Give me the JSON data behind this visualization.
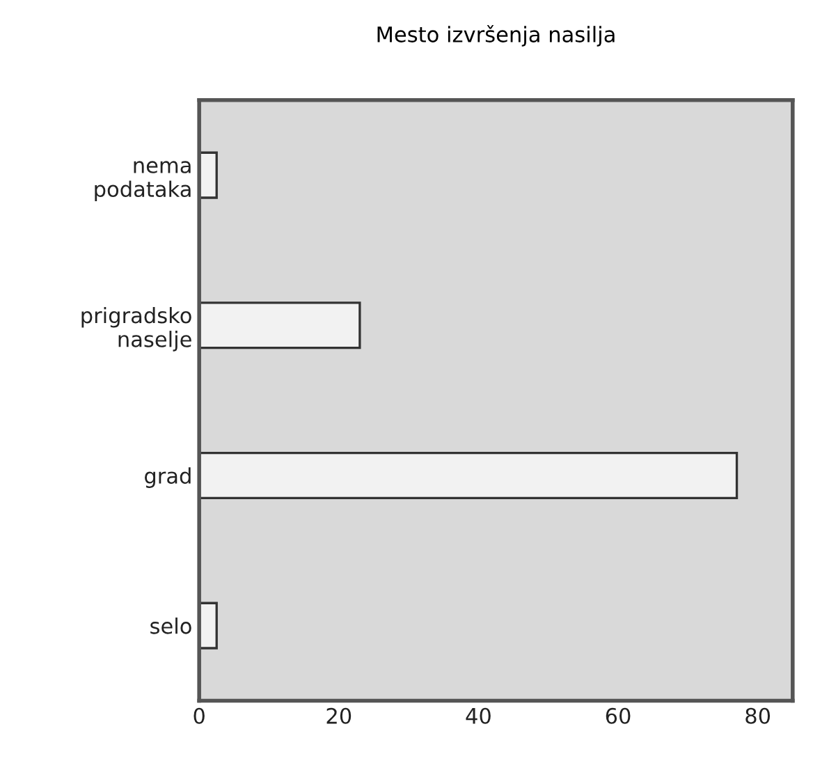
{
  "chart_data": {
    "type": "bar",
    "orientation": "horizontal",
    "title": "Mesto izvršenja nasilja",
    "categories": [
      "nema\npodataka",
      "prigradsko\nnaselje",
      "grad",
      "selo"
    ],
    "values": [
      2.5,
      23,
      77,
      2.5
    ],
    "color": "#f2f2f2",
    "xlim": [
      0,
      85
    ],
    "xticks": [
      0,
      20,
      40,
      60,
      80
    ],
    "grid": false
  }
}
